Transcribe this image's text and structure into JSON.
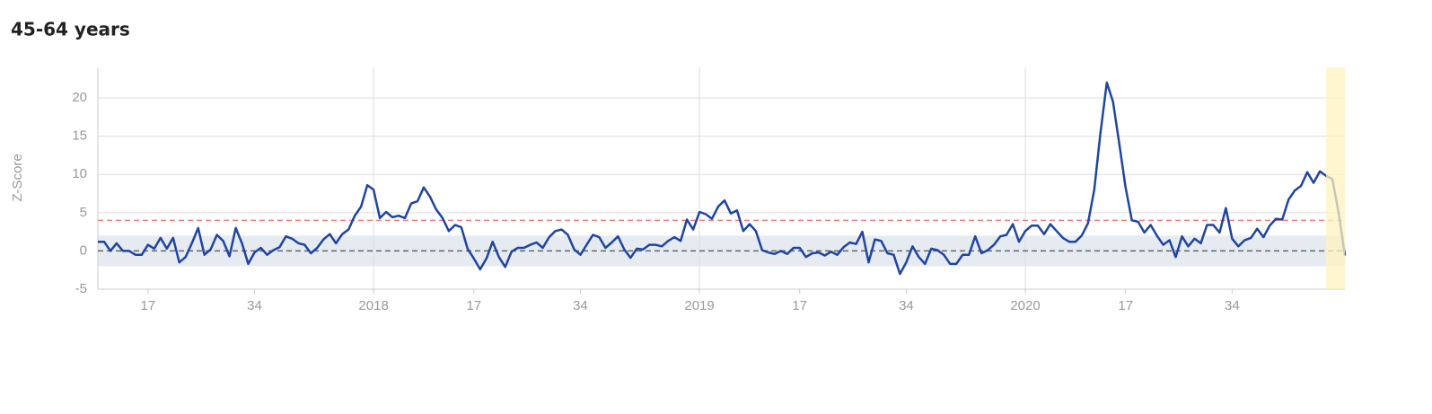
{
  "chart_data": {
    "type": "line",
    "title": "45-64 years",
    "y_label": "Z-Score",
    "categories": [
      null,
      null,
      null,
      null,
      null,
      null,
      null,
      null,
      "17",
      null,
      null,
      null,
      null,
      null,
      null,
      null,
      null,
      null,
      null,
      null,
      null,
      null,
      null,
      null,
      null,
      "34",
      null,
      null,
      null,
      null,
      null,
      null,
      null,
      null,
      null,
      null,
      null,
      null,
      null,
      null,
      null,
      null,
      null,
      null,
      "2018",
      null,
      null,
      null,
      null,
      null,
      null,
      null,
      null,
      null,
      null,
      null,
      null,
      null,
      null,
      null,
      "17",
      null,
      null,
      null,
      null,
      null,
      null,
      null,
      null,
      null,
      null,
      null,
      null,
      null,
      null,
      null,
      null,
      "34",
      null,
      null,
      null,
      null,
      null,
      null,
      null,
      null,
      null,
      null,
      null,
      null,
      null,
      null,
      null,
      null,
      null,
      null,
      "2019",
      null,
      null,
      null,
      null,
      null,
      null,
      null,
      null,
      null,
      null,
      null,
      null,
      null,
      null,
      null,
      "17",
      null,
      null,
      null,
      null,
      null,
      null,
      null,
      null,
      null,
      null,
      null,
      null,
      null,
      null,
      null,
      null,
      "34",
      null,
      null,
      null,
      null,
      null,
      null,
      null,
      null,
      null,
      null,
      null,
      null,
      null,
      null,
      null,
      null,
      null,
      null,
      "2020",
      null,
      null,
      null,
      null,
      null,
      null,
      null,
      null,
      null,
      null,
      null,
      null,
      null,
      null,
      null,
      "17",
      null,
      null,
      null,
      null,
      null,
      null,
      null,
      null,
      null,
      null,
      null,
      null,
      null,
      null,
      null,
      null,
      "34",
      null,
      null,
      null,
      null,
      null,
      null,
      null,
      null,
      null,
      null,
      null,
      null,
      null,
      null,
      null,
      null,
      null,
      null
    ],
    "series": [
      {
        "name": "Z-Score",
        "color": "#1f45a0",
        "values": [
          1.2,
          1.2,
          0,
          1,
          0,
          0,
          -0.5,
          -0.5,
          0.8,
          0.3,
          1.7,
          0.3,
          1.7,
          -1.5,
          -0.8,
          1.0,
          3.0,
          -0.5,
          0.2,
          2.1,
          1.3,
          -0.7,
          3.0,
          1.0,
          -1.7,
          -0.2,
          0.4,
          -0.5,
          0.1,
          0.5,
          1.9,
          1.6,
          1.0,
          0.8,
          -0.3,
          0.4,
          1.5,
          2.2,
          1.0,
          2.2,
          2.8,
          4.6,
          5.8,
          8.6,
          8.0,
          4.3,
          5.1,
          4.4,
          4.6,
          4.3,
          6.2,
          6.5,
          8.3,
          7.1,
          5.4,
          4.3,
          2.6,
          3.4,
          3.1,
          0.3,
          -1.0,
          -2.4,
          -1.0,
          1.2,
          -0.8,
          -2.1,
          -0.1,
          0.4,
          0.4,
          0.8,
          1.1,
          0.4,
          1.8,
          2.6,
          2.8,
          2.1,
          0.2,
          -0.5,
          0.8,
          2.1,
          1.8,
          0.4,
          1.1,
          1.9,
          0.2,
          -0.9,
          0.3,
          0.2,
          0.8,
          0.8,
          0.6,
          1.3,
          1.8,
          1.3,
          4.1,
          2.8,
          5.1,
          4.8,
          4.2,
          5.8,
          6.6,
          4.9,
          5.3,
          2.6,
          3.5,
          2.6,
          0.1,
          -0.2,
          -0.4,
          0,
          -0.4,
          0.4,
          0.4,
          -0.8,
          -0.3,
          -0.2,
          -0.6,
          -0.1,
          -0.5,
          0.5,
          1.1,
          0.9,
          2.5,
          -1.5,
          1.5,
          1.3,
          -0.3,
          -0.5,
          -3.0,
          -1.5,
          0.6,
          -0.8,
          -1.7,
          0.3,
          0.1,
          -0.5,
          -1.7,
          -1.7,
          -0.5,
          -0.5,
          1.9,
          -0.3,
          0.1,
          0.8,
          1.9,
          2.1,
          3.5,
          1.2,
          2.6,
          3.3,
          3.3,
          2.2,
          3.5,
          2.6,
          1.7,
          1.2,
          1.2,
          2.0,
          3.6,
          8.0,
          15.5,
          22.0,
          19.5,
          14.0,
          8.3,
          4.0,
          3.8,
          2.4,
          3.4,
          2.0,
          0.8,
          1.4,
          -0.8,
          1.9,
          0.6,
          1.6,
          1.0,
          3.4,
          3.4,
          2.4,
          5.6,
          1.6,
          0.6,
          1.4,
          1.7,
          2.9,
          1.8,
          3.3,
          4.2,
          4.1,
          6.7,
          7.9,
          8.5,
          10.3,
          8.9,
          10.4,
          9.8,
          9.4,
          5.0,
          -0.6
        ]
      }
    ],
    "ylim": [
      -5,
      24
    ],
    "yticks": [
      -5,
      0,
      5,
      10,
      15,
      20
    ],
    "grid": true,
    "reference_band": [
      -2,
      2
    ],
    "baseline": 0,
    "threshold": 4,
    "threshold_color": "#f08080",
    "band_color": "#e6ebf2",
    "highlight": [
      196,
      199
    ],
    "highlight_color": "#fff3bf"
  }
}
